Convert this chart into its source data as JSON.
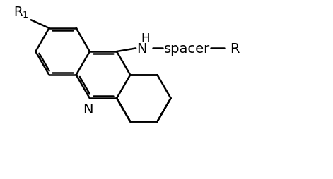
{
  "bg": "#ffffff",
  "lc": "#000000",
  "lw": 1.8,
  "fs": 13,
  "fig_w": 4.71,
  "fig_h": 2.55,
  "dpi": 100,
  "xlim": [
    0,
    10
  ],
  "ylim": [
    0,
    5.4
  ]
}
